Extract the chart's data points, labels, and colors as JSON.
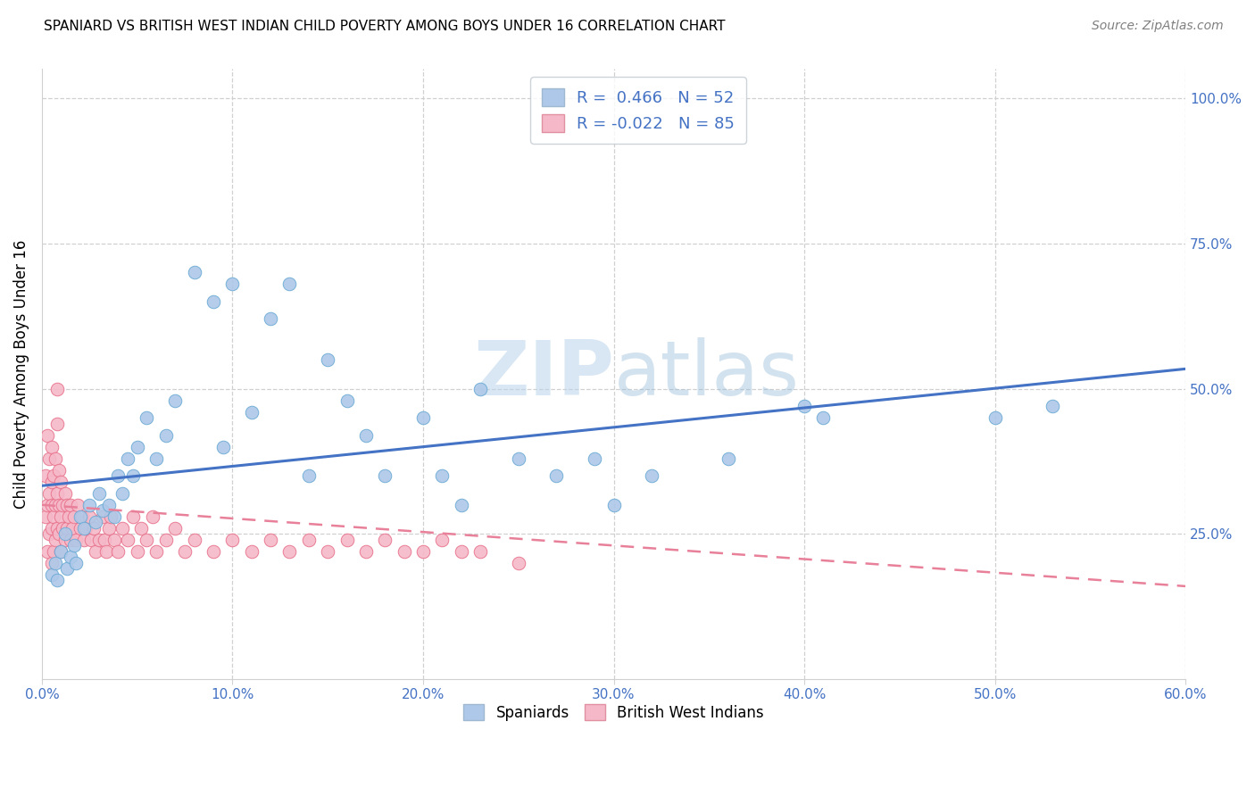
{
  "title": "SPANIARD VS BRITISH WEST INDIAN CHILD POVERTY AMONG BOYS UNDER 16 CORRELATION CHART",
  "source": "Source: ZipAtlas.com",
  "ylabel": "Child Poverty Among Boys Under 16",
  "xlim": [
    0.0,
    0.6
  ],
  "ylim": [
    0.0,
    1.05
  ],
  "xtick_labels": [
    "0.0%",
    "",
    "10.0%",
    "",
    "20.0%",
    "",
    "30.0%",
    "",
    "40.0%",
    "",
    "50.0%",
    "",
    "60.0%"
  ],
  "xtick_vals": [
    0.0,
    0.05,
    0.1,
    0.15,
    0.2,
    0.25,
    0.3,
    0.35,
    0.4,
    0.45,
    0.5,
    0.55,
    0.6
  ],
  "xtick_display": [
    "0.0%",
    "10.0%",
    "20.0%",
    "30.0%",
    "40.0%",
    "50.0%",
    "60.0%"
  ],
  "xtick_display_vals": [
    0.0,
    0.1,
    0.2,
    0.3,
    0.4,
    0.5,
    0.6
  ],
  "ytick_labels": [
    "25.0%",
    "50.0%",
    "75.0%",
    "100.0%"
  ],
  "ytick_vals": [
    0.25,
    0.5,
    0.75,
    1.0
  ],
  "spaniard_R": "0.466",
  "spaniard_N": "52",
  "bwi_R": "-0.022",
  "bwi_N": "85",
  "spaniard_color": "#adc8e8",
  "bwi_color": "#f5b8c8",
  "spaniard_edge_color": "#6aaad4",
  "bwi_edge_color": "#e8708a",
  "line_blue": "#4472c4",
  "line_pink": "#e8809a",
  "watermark_color": "#c8dff0",
  "spaniard_x": [
    0.005,
    0.007,
    0.008,
    0.01,
    0.012,
    0.013,
    0.015,
    0.017,
    0.018,
    0.02,
    0.022,
    0.025,
    0.028,
    0.03,
    0.032,
    0.035,
    0.038,
    0.04,
    0.042,
    0.045,
    0.048,
    0.05,
    0.055,
    0.06,
    0.065,
    0.07,
    0.08,
    0.09,
    0.095,
    0.1,
    0.11,
    0.12,
    0.13,
    0.14,
    0.15,
    0.16,
    0.17,
    0.18,
    0.2,
    0.21,
    0.22,
    0.23,
    0.25,
    0.27,
    0.29,
    0.3,
    0.32,
    0.36,
    0.4,
    0.41,
    0.5,
    0.53
  ],
  "spaniard_y": [
    0.18,
    0.2,
    0.17,
    0.22,
    0.25,
    0.19,
    0.21,
    0.23,
    0.2,
    0.28,
    0.26,
    0.3,
    0.27,
    0.32,
    0.29,
    0.3,
    0.28,
    0.35,
    0.32,
    0.38,
    0.35,
    0.4,
    0.45,
    0.38,
    0.42,
    0.48,
    0.7,
    0.65,
    0.4,
    0.68,
    0.46,
    0.62,
    0.68,
    0.35,
    0.55,
    0.48,
    0.42,
    0.35,
    0.45,
    0.35,
    0.3,
    0.5,
    0.38,
    0.35,
    0.38,
    0.3,
    0.35,
    0.38,
    0.47,
    0.45,
    0.45,
    0.47
  ],
  "bwi_x": [
    0.002,
    0.002,
    0.003,
    0.003,
    0.003,
    0.004,
    0.004,
    0.004,
    0.005,
    0.005,
    0.005,
    0.005,
    0.005,
    0.006,
    0.006,
    0.006,
    0.007,
    0.007,
    0.007,
    0.008,
    0.008,
    0.008,
    0.009,
    0.009,
    0.009,
    0.01,
    0.01,
    0.01,
    0.011,
    0.011,
    0.012,
    0.012,
    0.013,
    0.013,
    0.014,
    0.015,
    0.015,
    0.016,
    0.017,
    0.018,
    0.019,
    0.02,
    0.021,
    0.022,
    0.023,
    0.025,
    0.026,
    0.027,
    0.028,
    0.03,
    0.032,
    0.033,
    0.034,
    0.035,
    0.036,
    0.038,
    0.04,
    0.042,
    0.045,
    0.048,
    0.05,
    0.052,
    0.055,
    0.058,
    0.06,
    0.065,
    0.07,
    0.075,
    0.08,
    0.09,
    0.1,
    0.11,
    0.12,
    0.13,
    0.14,
    0.15,
    0.16,
    0.17,
    0.18,
    0.19,
    0.2,
    0.21,
    0.22,
    0.23,
    0.25
  ],
  "bwi_y": [
    0.28,
    0.35,
    0.3,
    0.22,
    0.42,
    0.25,
    0.32,
    0.38,
    0.2,
    0.26,
    0.3,
    0.34,
    0.4,
    0.22,
    0.28,
    0.35,
    0.24,
    0.3,
    0.38,
    0.26,
    0.32,
    0.44,
    0.25,
    0.3,
    0.36,
    0.22,
    0.28,
    0.34,
    0.26,
    0.3,
    0.24,
    0.32,
    0.26,
    0.3,
    0.28,
    0.24,
    0.3,
    0.26,
    0.28,
    0.24,
    0.3,
    0.26,
    0.28,
    0.24,
    0.26,
    0.28,
    0.24,
    0.26,
    0.22,
    0.24,
    0.28,
    0.24,
    0.22,
    0.26,
    0.28,
    0.24,
    0.22,
    0.26,
    0.24,
    0.28,
    0.22,
    0.26,
    0.24,
    0.28,
    0.22,
    0.24,
    0.26,
    0.22,
    0.24,
    0.22,
    0.24,
    0.22,
    0.24,
    0.22,
    0.24,
    0.22,
    0.24,
    0.22,
    0.24,
    0.22,
    0.22,
    0.24,
    0.22,
    0.22,
    0.2
  ],
  "bwi_outlier_x": [
    0.008
  ],
  "bwi_outlier_y": [
    0.5
  ]
}
